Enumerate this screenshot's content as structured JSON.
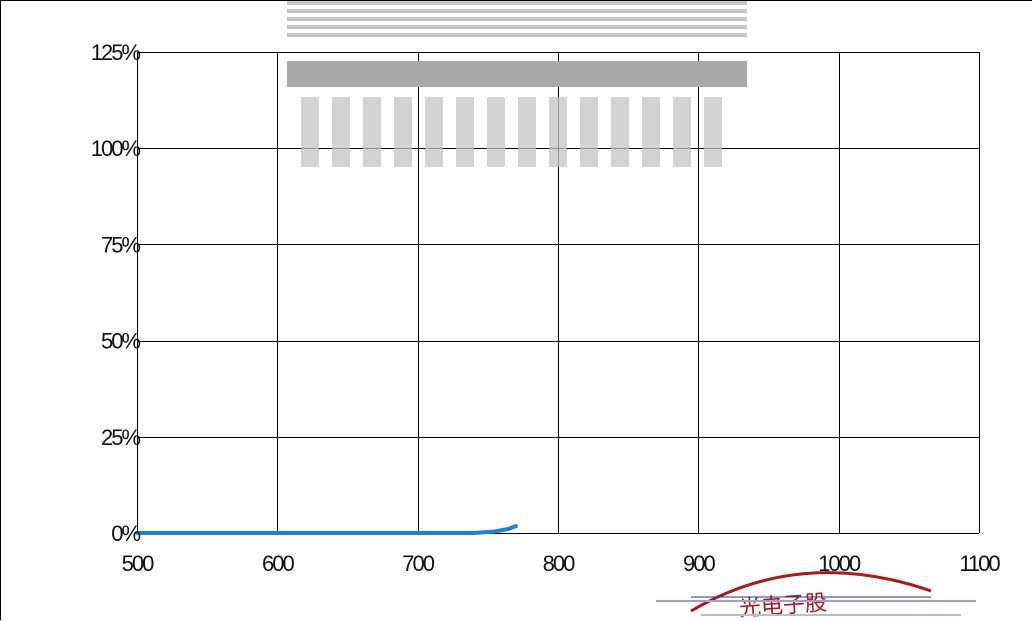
{
  "chart_data": {
    "type": "line",
    "title": "",
    "xlabel": "",
    "ylabel": "",
    "xlim": [
      500,
      1100
    ],
    "ylim": [
      0,
      125
    ],
    "x_ticks": [
      500,
      600,
      700,
      800,
      900,
      1000,
      1100
    ],
    "x_tick_labels": [
      "500",
      "600",
      "700",
      "800",
      "900",
      "1000",
      "1100"
    ],
    "y_ticks": [
      0,
      25,
      50,
      75,
      100,
      125
    ],
    "y_tick_labels": [
      "0%",
      "25%",
      "50%",
      "75%",
      "100%",
      "125%"
    ],
    "grid": true,
    "series": [
      {
        "color": "#1a7fe6",
        "x": [
          500,
          600,
          700,
          740,
          755,
          765,
          770
        ],
        "y": [
          0,
          0,
          0,
          0,
          0.4,
          1.1,
          1.8
        ]
      }
    ]
  },
  "stamp": {
    "text": "光电子股",
    "color": "#b01818"
  }
}
